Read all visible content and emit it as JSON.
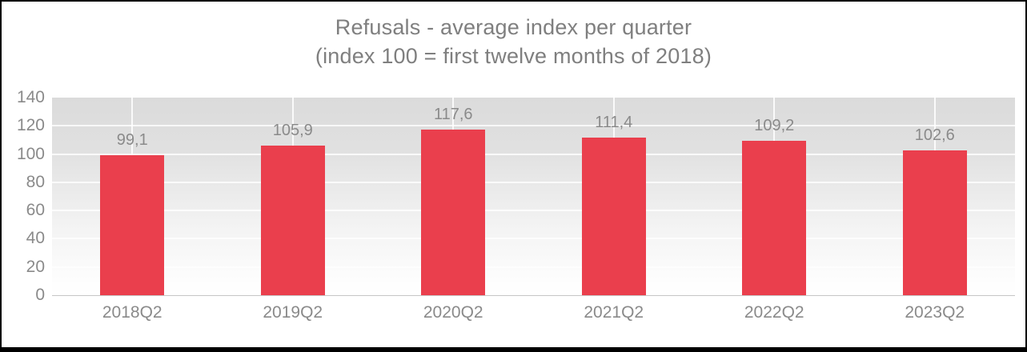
{
  "title": {
    "line1": "Refusals - average index per quarter",
    "line2": "(index 100 = first twelve months of 2018)"
  },
  "chart_data": {
    "type": "bar",
    "title": "Refusals - average index per quarter (index 100 = first twelve months of 2018)",
    "categories": [
      "2018Q2",
      "2019Q2",
      "2020Q2",
      "2021Q2",
      "2022Q2",
      "2023Q2"
    ],
    "values": [
      99.1,
      105.9,
      117.6,
      111.4,
      109.2,
      102.6
    ],
    "value_labels": [
      "99,1",
      "105,9",
      "117,6",
      "111,4",
      "109,2",
      "102,6"
    ],
    "xlabel": "",
    "ylabel": "",
    "ylim": [
      0,
      140
    ],
    "yticks": [
      0,
      20,
      40,
      60,
      80,
      100,
      120,
      140
    ],
    "grid": true,
    "legend_position": "none",
    "bar_color": "#ea3f4d",
    "label_color": "#8a8a8a",
    "title_color": "#7f7f7f",
    "plot_bg_top": "#dbdbdb",
    "plot_bg_bottom": "#ffffff"
  }
}
